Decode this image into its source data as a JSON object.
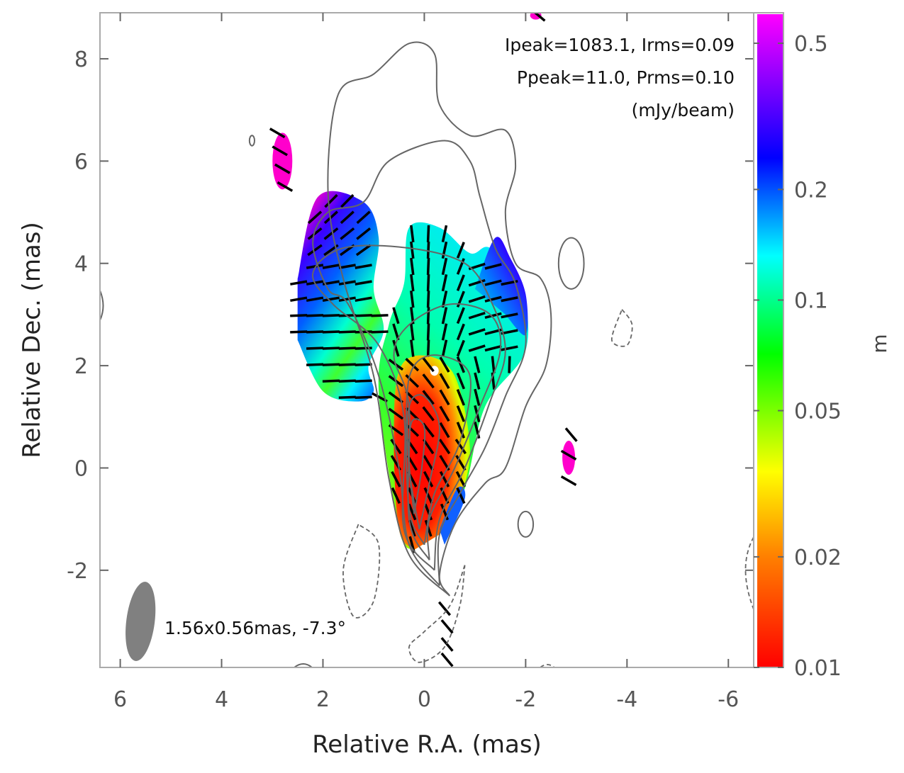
{
  "chart_data": {
    "type": "contour+heatmap",
    "xlabel": "Relative R.A. (mas)",
    "ylabel": "Relative Dec. (mas)",
    "xlim": [
      6.4,
      -6.5
    ],
    "ylim": [
      -3.9,
      8.9
    ],
    "xticks": [
      6,
      4,
      2,
      0,
      -2,
      -4,
      -6
    ],
    "xtick_labels": [
      "6",
      "4",
      "2",
      "0",
      "-2",
      "-4",
      "-6"
    ],
    "yticks": [
      8,
      6,
      4,
      2,
      0,
      -2
    ],
    "ytick_labels": [
      "8",
      "6",
      "4",
      "2",
      "0",
      "-2"
    ],
    "annotation_lines": [
      "Ipeak=1083.1, Irms=0.09",
      "Ppeak=11.0, Prms=0.10",
      "(mJy/beam)"
    ],
    "beam": {
      "major_mas": 1.56,
      "minor_mas": 0.56,
      "pa_deg": -7.3,
      "label": "1.56x0.56mas, -7.3°",
      "center": [
        5.6,
        -3.0
      ]
    },
    "colorbar": {
      "label": "m",
      "scale": "log",
      "range": [
        0.01,
        0.6
      ],
      "ticks": [
        0.01,
        0.02,
        0.05,
        0.1,
        0.2,
        0.5
      ],
      "tick_labels": [
        "0.01",
        "0.02",
        "0.05",
        "0.1",
        "0.2",
        "0.5"
      ],
      "colors": [
        "#ff0000",
        "#ff8000",
        "#ffff00",
        "#00ff00",
        "#00ffff",
        "#0000ff",
        "#ff00ff"
      ]
    },
    "contour_color": "#666666",
    "solid_contours": [
      [
        [
          -0.5,
          -2.5
        ],
        [
          0.3,
          -1.7
        ],
        [
          0.7,
          -0.2
        ],
        [
          1.0,
          1.8
        ],
        [
          1.6,
          3.7
        ],
        [
          1.9,
          5.4
        ],
        [
          1.7,
          7.3
        ],
        [
          1.0,
          7.7
        ],
        [
          0.3,
          8.3
        ],
        [
          -0.2,
          8.1
        ],
        [
          -0.3,
          7.1
        ],
        [
          -0.9,
          6.5
        ],
        [
          -1.6,
          6.6
        ],
        [
          -1.8,
          5.9
        ],
        [
          -1.6,
          5.0
        ],
        [
          -1.8,
          4.0
        ],
        [
          -2.3,
          3.7
        ],
        [
          -2.5,
          3.0
        ],
        [
          -2.4,
          2.0
        ],
        [
          -2.0,
          1.2
        ],
        [
          -1.6,
          0.0
        ],
        [
          -1.2,
          -0.3
        ],
        [
          -0.6,
          -1.1
        ],
        [
          -0.3,
          -2.1
        ],
        [
          -0.5,
          -2.5
        ]
      ],
      [
        [
          -0.3,
          -2.3
        ],
        [
          0.3,
          -1.5
        ],
        [
          0.5,
          0.0
        ],
        [
          0.9,
          1.8
        ],
        [
          1.5,
          3.2
        ],
        [
          1.9,
          3.5
        ],
        [
          2.2,
          4.4
        ],
        [
          1.9,
          5.0
        ],
        [
          1.2,
          5.2
        ],
        [
          0.7,
          6.0
        ],
        [
          -0.4,
          6.4
        ],
        [
          -0.9,
          6.0
        ],
        [
          -1.1,
          5.3
        ],
        [
          -1.4,
          4.3
        ],
        [
          -1.8,
          3.6
        ],
        [
          -2.0,
          2.4
        ],
        [
          -1.6,
          1.4
        ],
        [
          -1.2,
          0.4
        ],
        [
          -0.7,
          -0.5
        ],
        [
          -0.3,
          -1.3
        ],
        [
          -0.3,
          -2.3
        ]
      ],
      [
        [
          -0.2,
          -2.0
        ],
        [
          0.4,
          -1.2
        ],
        [
          0.4,
          1.0
        ],
        [
          0.9,
          2.4
        ],
        [
          1.8,
          3.2
        ],
        [
          2.2,
          3.8
        ],
        [
          1.6,
          4.3
        ],
        [
          0.3,
          4.3
        ],
        [
          -0.8,
          4.0
        ],
        [
          -1.3,
          3.3
        ],
        [
          -1.6,
          2.3
        ],
        [
          -1.3,
          1.3
        ],
        [
          -0.8,
          0.0
        ],
        [
          -0.3,
          -1.0
        ],
        [
          -0.2,
          -2.0
        ]
      ],
      [
        [
          -0.1,
          -1.8
        ],
        [
          0.3,
          -1.0
        ],
        [
          0.3,
          1.2
        ],
        [
          0.6,
          2.2
        ],
        [
          0.3,
          2.8
        ],
        [
          -0.5,
          3.2
        ],
        [
          -1.3,
          3.0
        ],
        [
          -1.5,
          2.3
        ],
        [
          -1.1,
          1.2
        ],
        [
          -0.6,
          0.0
        ],
        [
          -0.1,
          -1.0
        ],
        [
          -0.1,
          -1.8
        ]
      ],
      [
        [
          0.0,
          -1.5
        ],
        [
          0.3,
          -0.8
        ],
        [
          0.35,
          1.2
        ],
        [
          0.2,
          2.0
        ],
        [
          -0.3,
          2.2
        ],
        [
          -0.9,
          1.8
        ],
        [
          -0.7,
          0.5
        ],
        [
          -0.2,
          -0.5
        ],
        [
          0.0,
          -1.5
        ]
      ],
      [
        [
          0.1,
          -1.2
        ],
        [
          0.3,
          0.0
        ],
        [
          0.3,
          1.2
        ],
        [
          0.0,
          1.4
        ],
        [
          -0.3,
          0.8
        ],
        [
          -0.1,
          -0.3
        ],
        [
          0.1,
          -1.2
        ]
      ],
      [
        [
          0.2,
          -0.9
        ],
        [
          0.3,
          0.1
        ],
        [
          0.25,
          0.9
        ],
        [
          0.0,
          0.8
        ],
        [
          0.05,
          0.0
        ],
        [
          0.2,
          -0.9
        ]
      ]
    ],
    "dashed_contours": [
      [
        [
          1.3,
          -1.1
        ],
        [
          1.6,
          -2.0
        ],
        [
          1.4,
          -2.9
        ],
        [
          1.0,
          -2.6
        ],
        [
          0.9,
          -1.5
        ],
        [
          1.3,
          -1.1
        ]
      ],
      [
        [
          -0.8,
          -1.9
        ],
        [
          -0.5,
          -2.7
        ],
        [
          0.0,
          -3.2
        ],
        [
          0.3,
          -3.5
        ],
        [
          0.1,
          -3.8
        ],
        [
          -0.4,
          -3.5
        ],
        [
          -0.7,
          -2.7
        ],
        [
          -0.8,
          -1.9
        ]
      ],
      [
        [
          -3.9,
          3.1
        ],
        [
          -4.1,
          2.8
        ],
        [
          -4.0,
          2.4
        ],
        [
          -3.7,
          2.5
        ],
        [
          -3.9,
          3.1
        ]
      ]
    ],
    "small_islands": [
      {
        "kind": "solid",
        "center": [
          -2.9,
          4.0
        ],
        "rx": 0.25,
        "ry": 0.5
      },
      {
        "kind": "solid",
        "center": [
          -2.0,
          -1.1
        ],
        "rx": 0.15,
        "ry": 0.25
      },
      {
        "kind": "solid",
        "center": [
          3.4,
          6.4
        ],
        "rx": 0.05,
        "ry": 0.1
      }
    ],
    "polarization_regions": [
      {
        "name": "NE region",
        "polygon": [
          [
            2.5,
            3.7
          ],
          [
            2.1,
            5.3
          ],
          [
            1.2,
            5.2
          ],
          [
            0.9,
            4.5
          ],
          [
            1.0,
            3.5
          ],
          [
            0.8,
            2.7
          ],
          [
            1.1,
            2.0
          ],
          [
            1.0,
            1.5
          ],
          [
            1.3,
            1.3
          ],
          [
            2.0,
            1.5
          ],
          [
            2.5,
            2.5
          ]
        ],
        "m_values": [
          0.5,
          0.2,
          0.1,
          0.05
        ]
      },
      {
        "name": "Core/jet region",
        "polygon": [
          [
            0.2,
            -1.6
          ],
          [
            0.5,
            -1.2
          ],
          [
            0.9,
            1.5
          ],
          [
            0.7,
            2.8
          ],
          [
            0.4,
            3.6
          ],
          [
            0.3,
            4.7
          ],
          [
            -0.3,
            4.7
          ],
          [
            -0.9,
            4.2
          ],
          [
            -1.3,
            4.3
          ],
          [
            -1.9,
            3.6
          ],
          [
            -2.0,
            2.3
          ],
          [
            -1.2,
            1.2
          ],
          [
            -0.8,
            -0.4
          ],
          [
            -0.3,
            -1.3
          ]
        ],
        "m_values": [
          0.01,
          0.02,
          0.05,
          0.1,
          0.2
        ]
      },
      {
        "name": "Knot NE",
        "center": [
          2.8,
          6.0
        ],
        "m_value": 0.6
      },
      {
        "name": "Knot W",
        "center": [
          -2.85,
          0.2
        ],
        "m_value": 0.6
      },
      {
        "name": "Knot N",
        "center": [
          -2.2,
          8.85
        ],
        "m_value": 0.6
      }
    ],
    "evpa_grid_spacing_mas": 0.32
  }
}
